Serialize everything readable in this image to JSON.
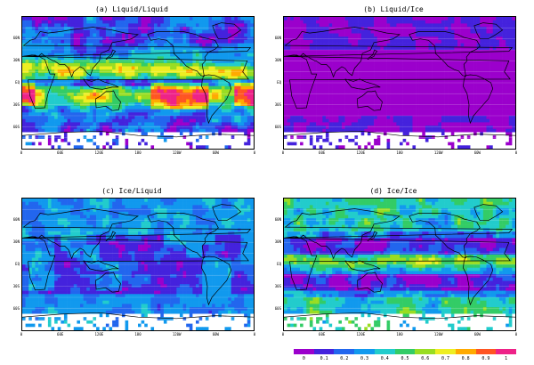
{
  "panels": [
    {
      "id": "a",
      "title": "(a) Liquid/Liquid",
      "mode": "liquid_liquid"
    },
    {
      "id": "b",
      "title": "(b) Liquid/Ice",
      "mode": "liquid_ice"
    },
    {
      "id": "c",
      "title": "(c) Ice/Liquid",
      "mode": "ice_liquid"
    },
    {
      "id": "d",
      "title": "(d) Ice/Ice",
      "mode": "ice_ice"
    }
  ],
  "lat_labels": [
    "60N",
    "30N",
    "EQ",
    "30S",
    "60S"
  ],
  "lon_labels": [
    "0",
    "60E",
    "120E",
    "180",
    "120W",
    "60W",
    "0"
  ],
  "colorbar": {
    "labels": [
      "0",
      "0.1",
      "0.2",
      "0.3",
      "0.4",
      "0.5",
      "0.6",
      "0.7",
      "0.8",
      "0.9",
      "1"
    ],
    "colors": [
      "#9b00cc",
      "#4422dd",
      "#2266ee",
      "#1199ee",
      "#22cccc",
      "#33cc66",
      "#99dd22",
      "#eeee22",
      "#ffaa00",
      "#ff5522",
      "#ee2288"
    ]
  }
}
